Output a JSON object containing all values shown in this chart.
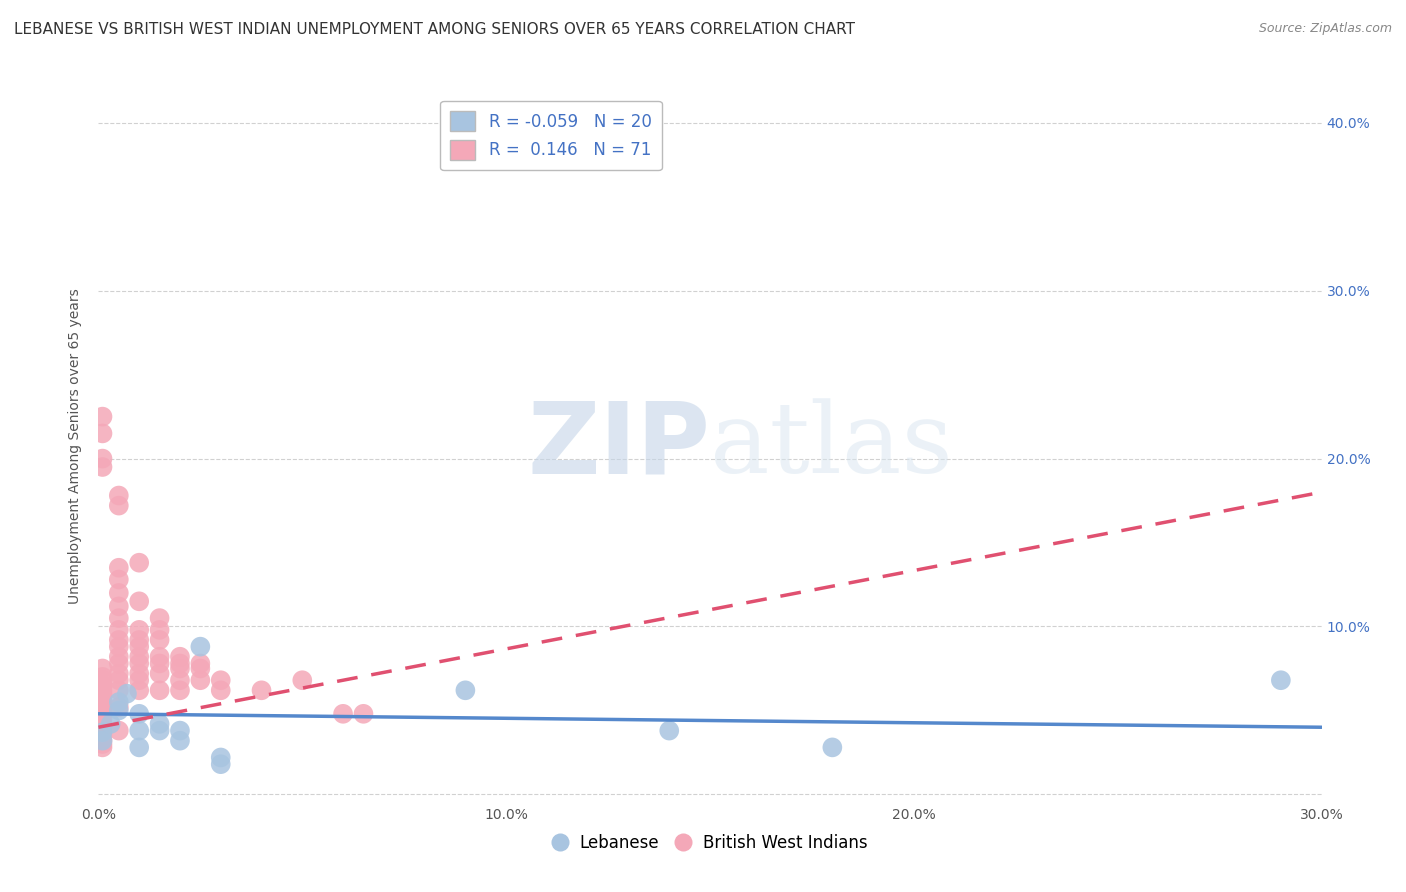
{
  "title": "LEBANESE VS BRITISH WEST INDIAN UNEMPLOYMENT AMONG SENIORS OVER 65 YEARS CORRELATION CHART",
  "source": "Source: ZipAtlas.com",
  "ylabel": "Unemployment Among Seniors over 65 years",
  "xlim": [
    0.0,
    0.3
  ],
  "ylim": [
    -0.005,
    0.42
  ],
  "xticks": [
    0.0,
    0.05,
    0.1,
    0.15,
    0.2,
    0.25,
    0.3
  ],
  "xticklabels": [
    "0.0%",
    "",
    "10.0%",
    "",
    "20.0%",
    "",
    "30.0%"
  ],
  "yticks": [
    0.0,
    0.1,
    0.2,
    0.3,
    0.4
  ],
  "yticklabels_right": [
    "",
    "10.0%",
    "20.0%",
    "30.0%",
    "40.0%"
  ],
  "legend_R_blue": "-0.059",
  "legend_N_blue": "20",
  "legend_R_pink": "0.146",
  "legend_N_pink": "71",
  "blue_color": "#a8c4e0",
  "pink_color": "#f4a8b8",
  "blue_line_color": "#5588cc",
  "pink_line_color": "#e05070",
  "watermark_zip": "ZIP",
  "watermark_atlas": "atlas",
  "title_fontsize": 11,
  "axis_label_fontsize": 10,
  "tick_fontsize": 10,
  "background_color": "#ffffff",
  "grid_color": "#cccccc",
  "scatter_blue": [
    [
      0.001,
      0.037
    ],
    [
      0.001,
      0.032
    ],
    [
      0.003,
      0.042
    ],
    [
      0.005,
      0.05
    ],
    [
      0.005,
      0.055
    ],
    [
      0.007,
      0.06
    ],
    [
      0.01,
      0.048
    ],
    [
      0.01,
      0.038
    ],
    [
      0.01,
      0.028
    ],
    [
      0.015,
      0.038
    ],
    [
      0.015,
      0.042
    ],
    [
      0.02,
      0.032
    ],
    [
      0.02,
      0.038
    ],
    [
      0.025,
      0.088
    ],
    [
      0.03,
      0.018
    ],
    [
      0.03,
      0.022
    ],
    [
      0.09,
      0.062
    ],
    [
      0.14,
      0.038
    ],
    [
      0.18,
      0.028
    ],
    [
      0.29,
      0.068
    ]
  ],
  "scatter_pink": [
    [
      0.001,
      0.075
    ],
    [
      0.001,
      0.07
    ],
    [
      0.001,
      0.068
    ],
    [
      0.001,
      0.065
    ],
    [
      0.001,
      0.062
    ],
    [
      0.001,
      0.06
    ],
    [
      0.001,
      0.058
    ],
    [
      0.001,
      0.055
    ],
    [
      0.001,
      0.052
    ],
    [
      0.001,
      0.05
    ],
    [
      0.001,
      0.048
    ],
    [
      0.001,
      0.045
    ],
    [
      0.001,
      0.042
    ],
    [
      0.001,
      0.04
    ],
    [
      0.001,
      0.038
    ],
    [
      0.001,
      0.035
    ],
    [
      0.001,
      0.032
    ],
    [
      0.001,
      0.03
    ],
    [
      0.001,
      0.028
    ],
    [
      0.001,
      0.215
    ],
    [
      0.001,
      0.225
    ],
    [
      0.005,
      0.038
    ],
    [
      0.005,
      0.052
    ],
    [
      0.005,
      0.062
    ],
    [
      0.005,
      0.068
    ],
    [
      0.005,
      0.072
    ],
    [
      0.005,
      0.078
    ],
    [
      0.005,
      0.082
    ],
    [
      0.005,
      0.088
    ],
    [
      0.005,
      0.092
    ],
    [
      0.005,
      0.098
    ],
    [
      0.005,
      0.105
    ],
    [
      0.005,
      0.112
    ],
    [
      0.005,
      0.12
    ],
    [
      0.005,
      0.128
    ],
    [
      0.005,
      0.135
    ],
    [
      0.01,
      0.062
    ],
    [
      0.01,
      0.068
    ],
    [
      0.01,
      0.072
    ],
    [
      0.01,
      0.078
    ],
    [
      0.01,
      0.082
    ],
    [
      0.01,
      0.088
    ],
    [
      0.01,
      0.092
    ],
    [
      0.01,
      0.098
    ],
    [
      0.01,
      0.138
    ],
    [
      0.01,
      0.115
    ],
    [
      0.015,
      0.062
    ],
    [
      0.015,
      0.072
    ],
    [
      0.015,
      0.078
    ],
    [
      0.015,
      0.082
    ],
    [
      0.015,
      0.092
    ],
    [
      0.015,
      0.098
    ],
    [
      0.015,
      0.105
    ],
    [
      0.02,
      0.062
    ],
    [
      0.02,
      0.068
    ],
    [
      0.02,
      0.075
    ],
    [
      0.02,
      0.078
    ],
    [
      0.02,
      0.082
    ],
    [
      0.025,
      0.068
    ],
    [
      0.025,
      0.075
    ],
    [
      0.025,
      0.078
    ],
    [
      0.03,
      0.062
    ],
    [
      0.03,
      0.068
    ],
    [
      0.04,
      0.062
    ],
    [
      0.05,
      0.068
    ],
    [
      0.06,
      0.048
    ],
    [
      0.065,
      0.048
    ],
    [
      0.001,
      0.195
    ],
    [
      0.001,
      0.2
    ],
    [
      0.005,
      0.172
    ],
    [
      0.005,
      0.178
    ]
  ],
  "blue_line_x": [
    0.0,
    0.3
  ],
  "blue_line_y": [
    0.048,
    0.04
  ],
  "pink_line_x": [
    0.0,
    0.3
  ],
  "pink_line_y": [
    0.04,
    0.18
  ]
}
